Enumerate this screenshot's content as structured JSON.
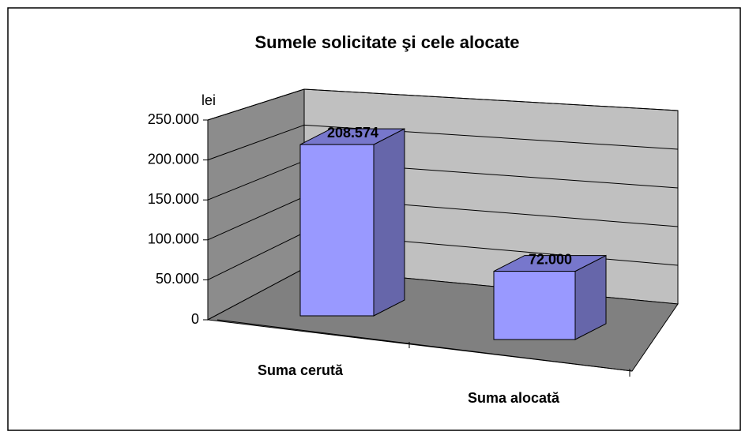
{
  "chart_data": {
    "type": "bar3d",
    "title": "Sumele solicitate şi cele alocate",
    "y_label": "lei",
    "categories": [
      "Suma cerută",
      "Suma alocată"
    ],
    "values": [
      208574,
      72000
    ],
    "value_labels": [
      "208.574",
      "72.000"
    ],
    "color": "#9999ff",
    "ylim": [
      0,
      250000
    ],
    "yticks": [
      0,
      {
        "value": 50000,
        "label": "50.000"
      },
      {
        "value": 100000,
        "label": "100.000"
      },
      {
        "value": 150000,
        "label": "150.000"
      },
      {
        "value": 200000,
        "label": "200.000"
      },
      {
        "value": 250000,
        "label": "250.000"
      }
    ],
    "grid": true
  }
}
